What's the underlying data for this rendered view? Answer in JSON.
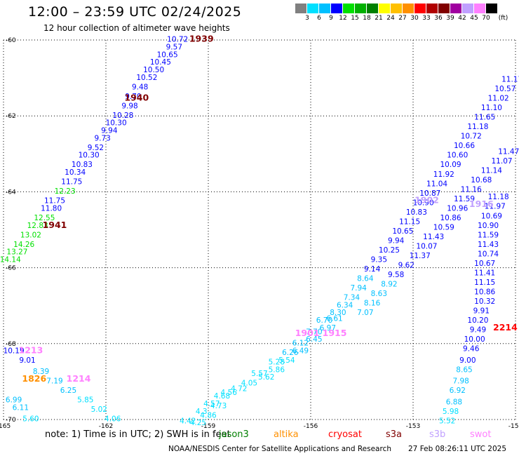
{
  "header": {
    "title": "12:00 – 23:59 UTC 02/24/2025",
    "subtitle": "12 hour collection of altimeter wave heights"
  },
  "legend": {
    "unit": "(ft)",
    "colors": [
      "#808080",
      "#00e0ff",
      "#00c0ff",
      "#0000ff",
      "#00e000",
      "#00b000",
      "#008000",
      "#ffff00",
      "#ffc000",
      "#ff9000",
      "#ff0000",
      "#b00000",
      "#800000",
      "#a000a0",
      "#c0a0ff",
      "#ff80ff",
      "#000000"
    ],
    "labels": [
      "3",
      "6",
      "9",
      "12",
      "15",
      "18",
      "21",
      "24",
      "27",
      "30",
      "33",
      "36",
      "39",
      "42",
      "45",
      "70"
    ]
  },
  "chart_data": {
    "type": "scatter",
    "lon_ticks": [
      "-165",
      "-162",
      "-159",
      "-156",
      "-153",
      "-150"
    ],
    "lat_ticks": [
      "-60",
      "-62",
      "-64",
      "-66",
      "-68",
      "-70"
    ],
    "xlim": [
      -165,
      -150
    ],
    "ylim": [
      -70,
      -60
    ],
    "tracks": [
      {
        "label": "1939",
        "label_color": "#800000",
        "label_lon": -159.2,
        "label_lat": -60.05
      },
      {
        "label": "1940",
        "label_color": "#800000",
        "label_lon": -161.1,
        "label_lat": -61.6
      },
      {
        "label": "1941",
        "label_color": "#800000",
        "label_lon": -163.5,
        "label_lat": -64.95
      },
      {
        "label": "1213",
        "label_color": "#ff80ff",
        "label_lon": -164.2,
        "label_lat": -68.25
      },
      {
        "label": "1826",
        "label_color": "#ff9000",
        "label_lon": -164.1,
        "label_lat": -69.0
      },
      {
        "label": "1214",
        "label_color": "#ff80ff",
        "label_lon": -162.8,
        "label_lat": -69.0
      },
      {
        "label": "1902",
        "label_color": "#c0a0ff",
        "label_lon": -152.6,
        "label_lat": -64.3
      },
      {
        "label": "1916",
        "label_color": "#c0a0ff",
        "label_lon": -151.0,
        "label_lat": -64.4
      },
      {
        "label": "1915",
        "label_color": "#ff80ff",
        "label_lon": -155.3,
        "label_lat": -67.8
      },
      {
        "label": "1901",
        "label_color": "#ff80ff",
        "label_lon": -156.1,
        "label_lat": -67.8
      },
      {
        "label": "2214",
        "label_color": "#ff0000",
        "label_lon": -150.3,
        "label_lat": -67.65
      }
    ],
    "points": [
      {
        "lon": -159.9,
        "lat": -60.05,
        "v": "10.72"
      },
      {
        "lon": -160.0,
        "lat": -60.25,
        "v": "9.57"
      },
      {
        "lon": -160.2,
        "lat": -60.45,
        "v": "10.65"
      },
      {
        "lon": -160.4,
        "lat": -60.65,
        "v": "10.45"
      },
      {
        "lon": -160.6,
        "lat": -60.85,
        "v": "10.50"
      },
      {
        "lon": -160.8,
        "lat": -61.05,
        "v": "10.52"
      },
      {
        "lon": -161.0,
        "lat": -61.3,
        "v": "9.48"
      },
      {
        "lon": -161.2,
        "lat": -61.55,
        "v": "9.70"
      },
      {
        "lon": -161.3,
        "lat": -61.8,
        "v": "9.98"
      },
      {
        "lon": -161.5,
        "lat": -62.05,
        "v": "10.28"
      },
      {
        "lon": -161.7,
        "lat": -62.25,
        "v": "10.30"
      },
      {
        "lon": -161.9,
        "lat": -62.45,
        "v": "9.94"
      },
      {
        "lon": -162.1,
        "lat": -62.65,
        "v": "9.73"
      },
      {
        "lon": -162.3,
        "lat": -62.9,
        "v": "9.52"
      },
      {
        "lon": -162.5,
        "lat": -63.1,
        "v": "10.30"
      },
      {
        "lon": -162.7,
        "lat": -63.35,
        "v": "10.83"
      },
      {
        "lon": -162.9,
        "lat": -63.55,
        "v": "10.34"
      },
      {
        "lon": -163.0,
        "lat": -63.8,
        "v": "11.75"
      },
      {
        "lon": -163.2,
        "lat": -64.05,
        "v": "12.23"
      },
      {
        "lon": -163.5,
        "lat": -64.3,
        "v": "11.75"
      },
      {
        "lon": -163.6,
        "lat": -64.5,
        "v": "11.80"
      },
      {
        "lon": -163.8,
        "lat": -64.75,
        "v": "12.55"
      },
      {
        "lon": -164.0,
        "lat": -64.95,
        "v": "12.83"
      },
      {
        "lon": -164.2,
        "lat": -65.2,
        "v": "13.02"
      },
      {
        "lon": -164.4,
        "lat": -65.45,
        "v": "14.26"
      },
      {
        "lon": -164.6,
        "lat": -65.65,
        "v": "13.27"
      },
      {
        "lon": -164.8,
        "lat": -65.85,
        "v": "14.14"
      },
      {
        "lon": -164.7,
        "lat": -68.25,
        "v": "10.19"
      },
      {
        "lon": -164.3,
        "lat": -68.5,
        "v": "9.01"
      },
      {
        "lon": -163.9,
        "lat": -68.8,
        "v": "8.39"
      },
      {
        "lon": -163.5,
        "lat": -69.05,
        "v": "7.19"
      },
      {
        "lon": -163.1,
        "lat": -69.3,
        "v": "6.25"
      },
      {
        "lon": -162.6,
        "lat": -69.55,
        "v": "5.85"
      },
      {
        "lon": -162.2,
        "lat": -69.8,
        "v": "5.02"
      },
      {
        "lon": -164.7,
        "lat": -69.55,
        "v": "6.99"
      },
      {
        "lon": -164.5,
        "lat": -69.75,
        "v": "6.11"
      },
      {
        "lon": -164.2,
        "lat": -70.05,
        "v": "5.60"
      },
      {
        "lon": -163.8,
        "lat": -70.3,
        "v": "4.89"
      },
      {
        "lon": -161.8,
        "lat": -70.05,
        "v": "4.06"
      },
      {
        "lon": -161.3,
        "lat": -70.3,
        "v": "4.46"
      },
      {
        "lon": -160.8,
        "lat": -70.55,
        "v": "3.80"
      },
      {
        "lon": -160.0,
        "lat": -70.35,
        "v": "4.09"
      },
      {
        "lon": -159.5,
        "lat": -70.45,
        "v": "4.81"
      },
      {
        "lon": -159.6,
        "lat": -70.1,
        "v": "4.42"
      },
      {
        "lon": -159.3,
        "lat": -70.15,
        "v": "4.25"
      },
      {
        "lon": -159.2,
        "lat": -69.85,
        "v": "4.3"
      },
      {
        "lon": -159.0,
        "lat": -69.95,
        "v": "4.86"
      },
      {
        "lon": -158.9,
        "lat": -69.65,
        "v": "4.57"
      },
      {
        "lon": -158.7,
        "lat": -69.7,
        "v": "4.73"
      },
      {
        "lon": -158.6,
        "lat": -69.45,
        "v": "4.68"
      },
      {
        "lon": -158.4,
        "lat": -69.35,
        "v": "4.56"
      },
      {
        "lon": -158.1,
        "lat": -69.25,
        "v": "4.72"
      },
      {
        "lon": -157.8,
        "lat": -69.1,
        "v": "4.05"
      },
      {
        "lon": -157.5,
        "lat": -68.85,
        "v": "5.57"
      },
      {
        "lon": -157.3,
        "lat": -68.95,
        "v": "5.62"
      },
      {
        "lon": -157.0,
        "lat": -68.75,
        "v": "5.86"
      },
      {
        "lon": -157.0,
        "lat": -68.55,
        "v": "5.28"
      },
      {
        "lon": -156.7,
        "lat": -68.5,
        "v": "5.54"
      },
      {
        "lon": -156.6,
        "lat": -68.3,
        "v": "6.26"
      },
      {
        "lon": -156.3,
        "lat": -68.25,
        "v": "6.49"
      },
      {
        "lon": -156.3,
        "lat": -68.05,
        "v": "6.12"
      },
      {
        "lon": -155.9,
        "lat": -67.95,
        "v": "6.45"
      },
      {
        "lon": -155.9,
        "lat": -67.75,
        "v": "7.70"
      },
      {
        "lon": -155.5,
        "lat": -67.65,
        "v": "6.97"
      },
      {
        "lon": -155.6,
        "lat": -67.45,
        "v": "6.70"
      },
      {
        "lon": -155.3,
        "lat": -67.4,
        "v": "6.61"
      },
      {
        "lon": -155.2,
        "lat": -67.25,
        "v": "8.30"
      },
      {
        "lon": -155.0,
        "lat": -67.05,
        "v": "6.34"
      },
      {
        "lon": -154.8,
        "lat": -66.85,
        "v": "7.34"
      },
      {
        "lon": -154.6,
        "lat": -66.6,
        "v": "7.94"
      },
      {
        "lon": -154.4,
        "lat": -66.35,
        "v": "8.64"
      },
      {
        "lon": -154.2,
        "lat": -66.1,
        "v": "9.14"
      },
      {
        "lon": -154.0,
        "lat": -65.85,
        "v": "9.35"
      },
      {
        "lon": -153.7,
        "lat": -65.6,
        "v": "10.25"
      },
      {
        "lon": -153.5,
        "lat": -65.35,
        "v": "9.94"
      },
      {
        "lon": -153.3,
        "lat": -65.1,
        "v": "10.65"
      },
      {
        "lon": -153.1,
        "lat": -64.85,
        "v": "11.15"
      },
      {
        "lon": -152.9,
        "lat": -64.6,
        "v": "10.83"
      },
      {
        "lon": -152.7,
        "lat": -64.35,
        "v": "10.90"
      },
      {
        "lon": -152.5,
        "lat": -64.1,
        "v": "10.87"
      },
      {
        "lon": -152.3,
        "lat": -63.85,
        "v": "11.04"
      },
      {
        "lon": -152.1,
        "lat": -63.6,
        "v": "11.92"
      },
      {
        "lon": -151.9,
        "lat": -63.35,
        "v": "10.09"
      },
      {
        "lon": -151.7,
        "lat": -63.1,
        "v": "10.60"
      },
      {
        "lon": -151.5,
        "lat": -62.85,
        "v": "10.66"
      },
      {
        "lon": -151.3,
        "lat": -62.6,
        "v": "10.72"
      },
      {
        "lon": -151.1,
        "lat": -62.35,
        "v": "11.18"
      },
      {
        "lon": -150.9,
        "lat": -62.1,
        "v": "11.65"
      },
      {
        "lon": -150.7,
        "lat": -61.85,
        "v": "11.10"
      },
      {
        "lon": -150.5,
        "lat": -61.6,
        "v": "11.02"
      },
      {
        "lon": -150.3,
        "lat": -61.35,
        "v": "10.57"
      },
      {
        "lon": -150.1,
        "lat": -61.1,
        "v": "11.17"
      },
      {
        "lon": -149.9,
        "lat": -60.85,
        "v": "10.63"
      },
      {
        "lon": -149.7,
        "lat": -60.6,
        "v": "11.21"
      },
      {
        "lon": -149.5,
        "lat": -60.35,
        "v": "10.73"
      },
      {
        "lon": -149.3,
        "lat": -60.1,
        "v": "10.25"
      },
      {
        "lon": -154.4,
        "lat": -67.25,
        "v": "7.07"
      },
      {
        "lon": -154.2,
        "lat": -67.0,
        "v": "8.16"
      },
      {
        "lon": -154.0,
        "lat": -66.75,
        "v": "8.63"
      },
      {
        "lon": -153.7,
        "lat": -66.5,
        "v": "8.92"
      },
      {
        "lon": -153.5,
        "lat": -66.25,
        "v": "9.58"
      },
      {
        "lon": -153.2,
        "lat": -66.0,
        "v": "9.62"
      },
      {
        "lon": -152.8,
        "lat": -65.75,
        "v": "11.37"
      },
      {
        "lon": -152.6,
        "lat": -65.5,
        "v": "10.07"
      },
      {
        "lon": -152.4,
        "lat": -65.25,
        "v": "11.43"
      },
      {
        "lon": -152.1,
        "lat": -65.0,
        "v": "10.59"
      },
      {
        "lon": -151.9,
        "lat": -64.75,
        "v": "10.86"
      },
      {
        "lon": -151.7,
        "lat": -64.5,
        "v": "10.96"
      },
      {
        "lon": -151.5,
        "lat": -64.25,
        "v": "11.59"
      },
      {
        "lon": -151.3,
        "lat": -64.0,
        "v": "11.16"
      },
      {
        "lon": -151.0,
        "lat": -63.75,
        "v": "10.68"
      },
      {
        "lon": -150.7,
        "lat": -63.5,
        "v": "11.14"
      },
      {
        "lon": -150.4,
        "lat": -63.25,
        "v": "11.07"
      },
      {
        "lon": -150.2,
        "lat": -63.0,
        "v": "11.47"
      },
      {
        "lon": -150.5,
        "lat": -64.2,
        "v": "11.18"
      },
      {
        "lon": -150.6,
        "lat": -64.45,
        "v": "11.97"
      },
      {
        "lon": -150.7,
        "lat": -64.7,
        "v": "10.69"
      },
      {
        "lon": -150.8,
        "lat": -64.95,
        "v": "10.90"
      },
      {
        "lon": -150.8,
        "lat": -65.2,
        "v": "11.59"
      },
      {
        "lon": -150.8,
        "lat": -65.45,
        "v": "11.43"
      },
      {
        "lon": -150.8,
        "lat": -65.7,
        "v": "10.74"
      },
      {
        "lon": -150.9,
        "lat": -65.95,
        "v": "10.67"
      },
      {
        "lon": -150.9,
        "lat": -66.2,
        "v": "11.41"
      },
      {
        "lon": -150.9,
        "lat": -66.45,
        "v": "11.15"
      },
      {
        "lon": -150.9,
        "lat": -66.7,
        "v": "10.86"
      },
      {
        "lon": -150.9,
        "lat": -66.95,
        "v": "10.32"
      },
      {
        "lon": -151.0,
        "lat": -67.2,
        "v": "9.91"
      },
      {
        "lon": -151.1,
        "lat": -67.45,
        "v": "10.20"
      },
      {
        "lon": -151.1,
        "lat": -67.7,
        "v": "9.49"
      },
      {
        "lon": -151.2,
        "lat": -67.95,
        "v": "10.00"
      },
      {
        "lon": -151.3,
        "lat": -68.2,
        "v": "9.46"
      },
      {
        "lon": -151.4,
        "lat": -68.5,
        "v": "9.00"
      },
      {
        "lon": -151.5,
        "lat": -68.75,
        "v": "8.65"
      },
      {
        "lon": -151.6,
        "lat": -69.05,
        "v": "7.98"
      },
      {
        "lon": -151.7,
        "lat": -69.3,
        "v": "6.92"
      },
      {
        "lon": -151.8,
        "lat": -69.6,
        "v": "6.88"
      },
      {
        "lon": -151.9,
        "lat": -69.85,
        "v": "5.98"
      },
      {
        "lon": -152.0,
        "lat": -70.1,
        "v": "5.52"
      }
    ]
  },
  "footer": {
    "note": "note:  1) Time is in UTC; 2) SWH is in feet",
    "satellites": [
      {
        "name": "jason3",
        "color": "#008000"
      },
      {
        "name": "altika",
        "color": "#ff9000"
      },
      {
        "name": "cryosat",
        "color": "#ff0000"
      },
      {
        "name": "s3a",
        "color": "#800000"
      },
      {
        "name": "s3b",
        "color": "#c0a0ff"
      },
      {
        "name": "swot",
        "color": "#ff80ff"
      }
    ],
    "credit": "NOAA/NESDIS Center for Satellite Applications and Research",
    "timestamp": "27 Feb 08:26:11 UTC 2025"
  }
}
